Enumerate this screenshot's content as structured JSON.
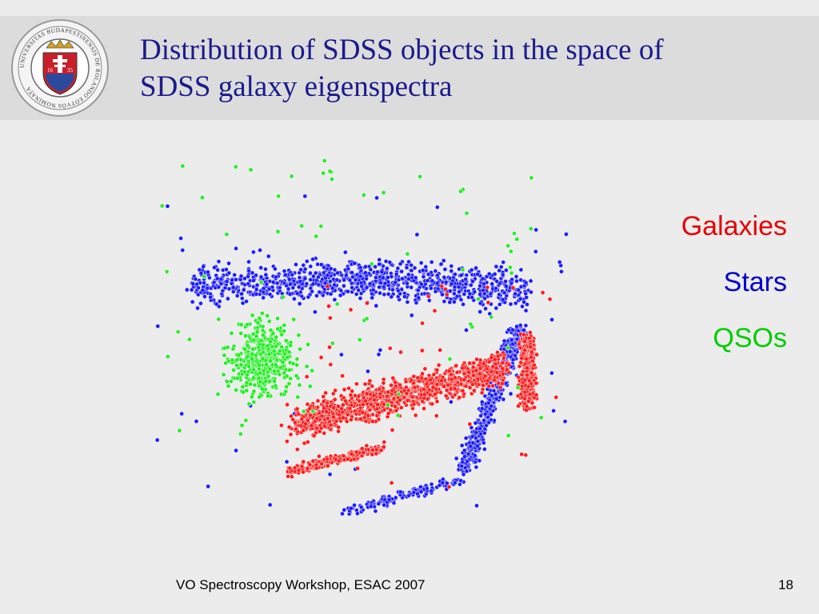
{
  "slide": {
    "title_line1": "Distribution of SDSS objects in the space of",
    "title_line2": "SDSS galaxy eigenspectra",
    "footer": "VO Spectroscopy Workshop, ESAC 2007",
    "page_number": "18"
  },
  "seal": {
    "ring_text": "UNIVERSITAS BUDAPESTINENSIS DE ROLANDO EÖTVÖS NOMINATA",
    "year_left": "16",
    "year_right": "35"
  },
  "legend": {
    "items": [
      {
        "label": "Galaxies",
        "color": "#e60000"
      },
      {
        "label": "Stars",
        "color": "#0000cc"
      },
      {
        "label": "QSOs",
        "color": "#00cc00"
      }
    ]
  },
  "colors": {
    "galaxies": "#ff1a1a",
    "stars": "#1a1aff",
    "qsos": "#22ee22",
    "title": "#1a1a8c"
  }
}
